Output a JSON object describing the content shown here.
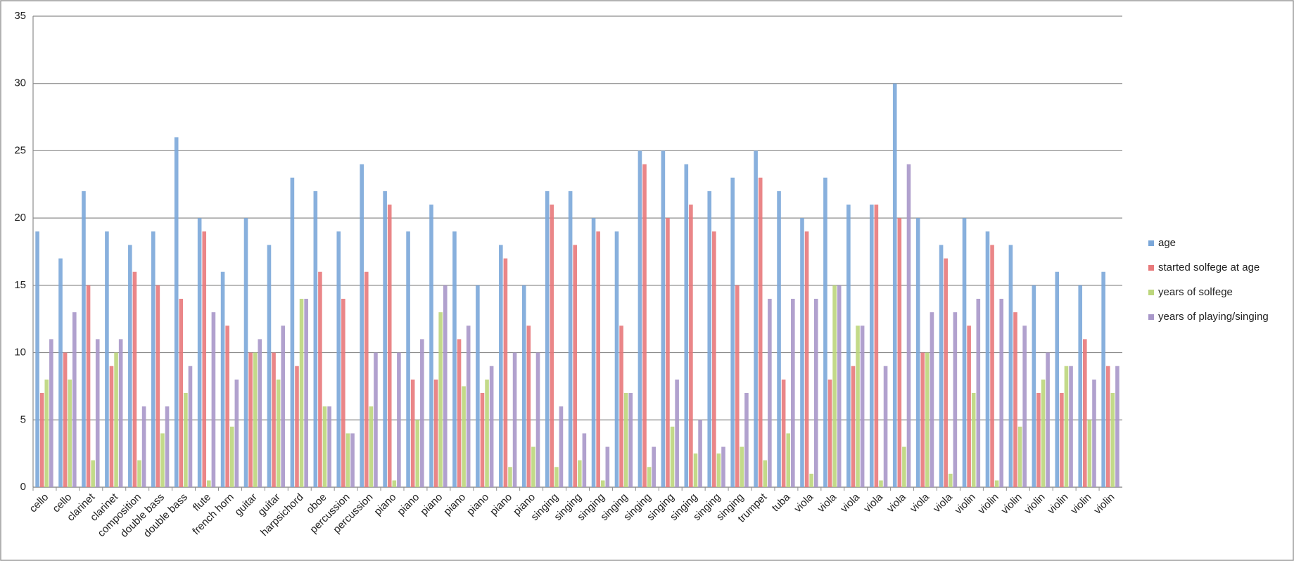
{
  "chart_data": {
    "type": "bar",
    "categories": [
      "cello",
      "cello",
      "clarinet",
      "clarinet",
      "composition",
      "double bass",
      "double bass",
      "flute",
      "french horn",
      "guitar",
      "guitar",
      "harpsichord",
      "oboe",
      "percussion",
      "percussion",
      "piano",
      "piano",
      "piano",
      "piano",
      "piano",
      "piano",
      "piano",
      "singing",
      "singing",
      "singing",
      "singing",
      "singing",
      "singing",
      "singing",
      "singing",
      "singing",
      "trumpet",
      "tuba",
      "viola",
      "viola",
      "viola",
      "viola",
      "viola",
      "viola",
      "viola",
      "violin",
      "violin",
      "violin",
      "violin",
      "violin",
      "violin",
      "violin"
    ],
    "series": [
      {
        "name": "age",
        "color": "#7ba7d9",
        "values": [
          19,
          17,
          22,
          19,
          18,
          19,
          26,
          20,
          16,
          20,
          18,
          23,
          22,
          19,
          24,
          22,
          19,
          21,
          19,
          15,
          18,
          15,
          22,
          22,
          20,
          19,
          25,
          25,
          24,
          22,
          23,
          25,
          22,
          20,
          23,
          21,
          21,
          30,
          20,
          18,
          20,
          19,
          18,
          15,
          16,
          15,
          16
        ]
      },
      {
        "name": "started solfege at age",
        "color": "#e8797b",
        "values": [
          7,
          10,
          15,
          9,
          16,
          15,
          14,
          19,
          12,
          10,
          10,
          9,
          16,
          14,
          16,
          21,
          8,
          8,
          11,
          7,
          17,
          12,
          21,
          18,
          19,
          12,
          24,
          20,
          21,
          19,
          15,
          23,
          8,
          19,
          8,
          9,
          21,
          20,
          10,
          17,
          12,
          18,
          13,
          7,
          7,
          11,
          9
        ]
      },
      {
        "name": "years of solfege",
        "color": "#bcd67c",
        "values": [
          8,
          8,
          2,
          10,
          2,
          4,
          7,
          0.5,
          4.5,
          10,
          8,
          14,
          6,
          4,
          6,
          0.5,
          5,
          13,
          7.5,
          8,
          1.5,
          3,
          1.5,
          2,
          0.5,
          7,
          1.5,
          4.5,
          2.5,
          2.5,
          3,
          2,
          4,
          1,
          15,
          12,
          0.5,
          3,
          10,
          1,
          7,
          0.5,
          4.5,
          8,
          9,
          5,
          7
        ]
      },
      {
        "name": "years of playing/singing",
        "color": "#a897c9",
        "values": [
          11,
          13,
          11,
          11,
          6,
          6,
          9,
          13,
          8,
          11,
          12,
          14,
          6,
          4,
          10,
          10,
          11,
          15,
          12,
          9,
          10,
          10,
          6,
          4,
          3,
          7,
          3,
          8,
          5,
          3,
          7,
          14,
          14,
          14,
          15,
          12,
          9,
          24,
          13,
          13,
          14,
          14,
          12,
          10,
          9,
          8,
          9
        ]
      }
    ],
    "ylim": [
      0,
      35
    ],
    "yticks": [
      0,
      5,
      10,
      15,
      20,
      25,
      30,
      35
    ],
    "grid": true,
    "legend": "right"
  }
}
